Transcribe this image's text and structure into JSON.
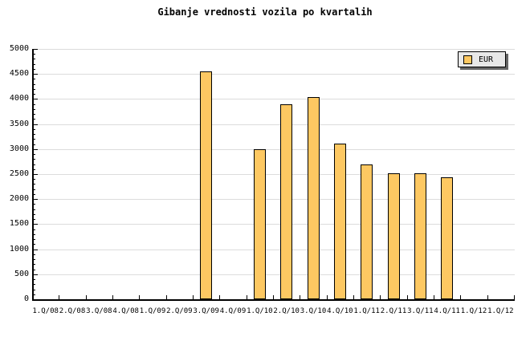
{
  "chart_data": {
    "type": "bar",
    "title": "Gibanje vrednosti vozila po kvartalih",
    "xlabel": "",
    "ylabel": "",
    "categories": [
      "1.Q/08",
      "2.Q/08",
      "3.Q/08",
      "4.Q/08",
      "1.Q/09",
      "2.Q/09",
      "3.Q/09",
      "4.Q/09",
      "1.Q/10",
      "2.Q/10",
      "3.Q/10",
      "4.Q/10",
      "1.Q/11",
      "2.Q/11",
      "3.Q/11",
      "4.Q/11",
      "1.Q/12",
      "1.Q/12"
    ],
    "series": [
      {
        "name": "EUR",
        "values": [
          null,
          null,
          null,
          null,
          null,
          null,
          4550,
          null,
          3000,
          3900,
          4040,
          3110,
          2700,
          2520,
          2520,
          2430,
          null,
          null
        ]
      }
    ],
    "ylim": [
      0,
      5000
    ],
    "ytick_step": 500,
    "y_minor_step": 100,
    "y_tick_labels": [
      "0",
      "500",
      "1000",
      "1500",
      "2000",
      "2500",
      "3000",
      "3500",
      "4000",
      "4500",
      "5000"
    ],
    "grid": true,
    "legend": {
      "label": "EUR",
      "position": "top-right"
    },
    "colors": {
      "bar_fill": "#FDC862",
      "bar_border": "#000000",
      "grid": "#DCDCDC",
      "axis": "#000000",
      "text": "#000000",
      "legend_bg": "#E8E8E8",
      "legend_shadow": "#666666",
      "background": "#FFFFFF"
    }
  }
}
